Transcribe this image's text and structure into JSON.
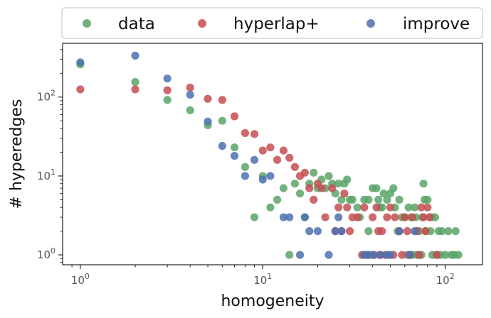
{
  "chart_data": {
    "type": "scatter",
    "xlabel": "homogeneity",
    "ylabel": "# hyperedges",
    "x_scale": "log",
    "y_scale": "log",
    "xlim": [
      0.8,
      160
    ],
    "ylim": [
      0.75,
      480
    ],
    "x_ticks": [
      {
        "value": 1,
        "base": "10",
        "exp": "0"
      },
      {
        "value": 10,
        "base": "10",
        "exp": "1"
      },
      {
        "value": 100,
        "base": "10",
        "exp": "2"
      }
    ],
    "y_ticks": [
      {
        "value": 1,
        "base": "10",
        "exp": "0"
      },
      {
        "value": 10,
        "base": "10",
        "exp": "1"
      },
      {
        "value": 100,
        "base": "10",
        "exp": "2"
      }
    ],
    "grid": false,
    "legend_position": "top-above",
    "series": [
      {
        "name": "data",
        "color": "#5aa469",
        "points": [
          [
            1,
            260
          ],
          [
            2,
            155
          ],
          [
            3,
            92
          ],
          [
            4,
            68
          ],
          [
            5,
            44
          ],
          [
            6,
            50
          ],
          [
            7,
            23
          ],
          [
            8,
            13
          ],
          [
            9,
            3
          ],
          [
            10,
            10
          ],
          [
            11,
            4
          ],
          [
            12,
            5
          ],
          [
            13,
            7
          ],
          [
            14,
            1
          ],
          [
            15,
            8
          ],
          [
            16,
            6
          ],
          [
            17,
            3
          ],
          [
            18,
            8
          ],
          [
            19,
            11
          ],
          [
            20,
            7
          ],
          [
            21,
            9
          ],
          [
            22,
            7
          ],
          [
            23,
            10
          ],
          [
            24,
            8
          ],
          [
            25,
            6
          ],
          [
            26,
            8
          ],
          [
            27,
            5
          ],
          [
            28,
            8
          ],
          [
            29,
            9
          ],
          [
            30,
            5
          ],
          [
            31,
            5
          ],
          [
            33,
            4
          ],
          [
            34,
            3
          ],
          [
            36,
            5
          ],
          [
            38,
            2
          ],
          [
            38,
            5
          ],
          [
            40,
            7
          ],
          [
            42,
            7
          ],
          [
            43,
            5
          ],
          [
            44,
            4
          ],
          [
            45,
            4
          ],
          [
            46,
            6
          ],
          [
            48,
            5
          ],
          [
            50,
            6
          ],
          [
            52,
            7
          ],
          [
            53,
            4
          ],
          [
            55,
            2
          ],
          [
            56,
            5
          ],
          [
            58,
            3
          ],
          [
            60,
            3
          ],
          [
            62,
            1
          ],
          [
            63,
            4
          ],
          [
            65,
            3
          ],
          [
            66,
            1
          ],
          [
            68,
            4
          ],
          [
            69,
            3
          ],
          [
            70,
            1
          ],
          [
            72,
            2
          ],
          [
            74,
            1
          ],
          [
            75,
            3
          ],
          [
            76,
            8
          ],
          [
            77,
            5
          ],
          [
            78,
            2
          ],
          [
            80,
            5
          ],
          [
            83,
            2
          ],
          [
            84,
            3
          ],
          [
            85,
            1
          ],
          [
            88,
            3
          ],
          [
            90,
            1
          ],
          [
            92,
            2
          ],
          [
            94,
            1
          ],
          [
            96,
            2
          ],
          [
            100,
            1
          ],
          [
            104,
            2
          ],
          [
            108,
            1
          ],
          [
            112,
            1
          ],
          [
            114,
            2
          ],
          [
            118,
            1
          ]
        ]
      },
      {
        "name": "hyperlap+",
        "color": "#c44e52",
        "points": [
          [
            1,
            125
          ],
          [
            2,
            125
          ],
          [
            3,
            122
          ],
          [
            4,
            132
          ],
          [
            5,
            95
          ],
          [
            6,
            92
          ],
          [
            7,
            57
          ],
          [
            8,
            35
          ],
          [
            9,
            34
          ],
          [
            10,
            21
          ],
          [
            11,
            23
          ],
          [
            12,
            16
          ],
          [
            13,
            21
          ],
          [
            14,
            17
          ],
          [
            15,
            13
          ],
          [
            16,
            10
          ],
          [
            17,
            11
          ],
          [
            18,
            7
          ],
          [
            19,
            5
          ],
          [
            20,
            8
          ],
          [
            21,
            7
          ],
          [
            22,
            3
          ],
          [
            24,
            7
          ],
          [
            25,
            2
          ],
          [
            26,
            4
          ],
          [
            27,
            2
          ],
          [
            28,
            6
          ],
          [
            29,
            4
          ],
          [
            30,
            2
          ],
          [
            31,
            3
          ],
          [
            33,
            3
          ],
          [
            35,
            1
          ],
          [
            36,
            4
          ],
          [
            37,
            1
          ],
          [
            38,
            1
          ],
          [
            40,
            3
          ],
          [
            41,
            1
          ],
          [
            42,
            4
          ],
          [
            43,
            2
          ],
          [
            44,
            1
          ],
          [
            45,
            2
          ],
          [
            47,
            1
          ],
          [
            48,
            3
          ],
          [
            50,
            4
          ],
          [
            52,
            1
          ],
          [
            53,
            3
          ],
          [
            56,
            2
          ],
          [
            58,
            1
          ],
          [
            60,
            3
          ],
          [
            62,
            2
          ],
          [
            64,
            1
          ],
          [
            66,
            3
          ],
          [
            70,
            2
          ],
          [
            72,
            1
          ],
          [
            74,
            4
          ],
          [
            76,
            3
          ],
          [
            78,
            2
          ],
          [
            80,
            4
          ],
          [
            82,
            3
          ],
          [
            90,
            1
          ]
        ]
      },
      {
        "name": "improve",
        "color": "#4c72b0",
        "points": [
          [
            1,
            275
          ],
          [
            2,
            335
          ],
          [
            3,
            172
          ],
          [
            4,
            107
          ],
          [
            5,
            49
          ],
          [
            6,
            24
          ],
          [
            7,
            18
          ],
          [
            8,
            10
          ],
          [
            9,
            16
          ],
          [
            10,
            9
          ],
          [
            11,
            10
          ],
          [
            13,
            3
          ],
          [
            14,
            3
          ],
          [
            16,
            1
          ],
          [
            17,
            3
          ],
          [
            18,
            2
          ],
          [
            20,
            2
          ],
          [
            23,
            1
          ],
          [
            25,
            2
          ],
          [
            26,
            3
          ],
          [
            27,
            2
          ],
          [
            36,
            1
          ],
          [
            38,
            1
          ],
          [
            40,
            1
          ],
          [
            44,
            1
          ],
          [
            48,
            1
          ],
          [
            50,
            1
          ],
          [
            56,
            2
          ],
          [
            64,
            1
          ],
          [
            68,
            2
          ]
        ]
      }
    ]
  }
}
